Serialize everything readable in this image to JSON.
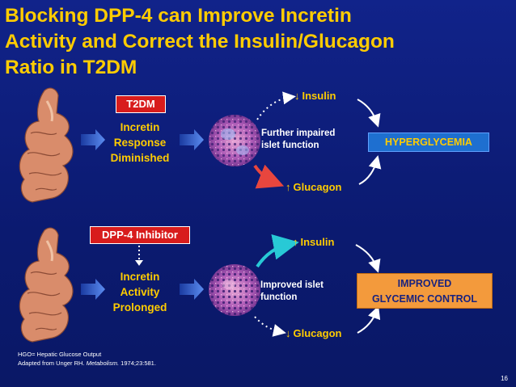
{
  "title": {
    "line1": "Blocking DPP-4 can Improve Incretin",
    "line2": "Activity and Correct the Insulin/Glucagon",
    "line3": "Ratio in T2DM"
  },
  "top": {
    "tag": "T2DM",
    "incretin_line1": "Incretin",
    "incretin_line2": "Response",
    "incretin_line3": "Diminished",
    "islet_line1": "Further impaired",
    "islet_line2": "islet function",
    "insulin_arrow": "↓",
    "insulin_label": "Insulin",
    "glucagon_arrow": "↑",
    "glucagon_label": "Glucagon",
    "outcome": "HYPERGLYCEMIA"
  },
  "bottom": {
    "tag": "DPP-4 Inhibitor",
    "incretin_line1": "Incretin",
    "incretin_line2": "Activity",
    "incretin_line3": "Prolonged",
    "islet_line1": "Improved islet",
    "islet_line2": "function",
    "insulin_arrow": "↑",
    "insulin_label": "Insulin",
    "glucagon_arrow": "↓",
    "glucagon_label": "Glucagon",
    "outcome_line1": "IMPROVED",
    "outcome_line2": "GLYCEMIC CONTROL"
  },
  "footer": {
    "line1": "HGO= Hepatic Glucose Output",
    "line2_prefix": "Adapted from Unger RH. ",
    "line2_journal": "Metabolism.",
    "line2_suffix": " 1974;23:581."
  },
  "page_number": "16",
  "colors": {
    "background": "#0c1d78",
    "title": "#ffcc00",
    "tag_red": "#d81c1c",
    "outcome_top_bg": "#1e6fd0",
    "outcome_bottom_bg": "#f39a3c",
    "glucagon_arrow_top": "#e8463e",
    "insulin_arrow_bottom": "#28c9d6"
  },
  "icons": [
    "intestine-icon",
    "islet-cells-icon",
    "right-arrow-icon",
    "curved-arrow-icon",
    "dotted-arrow-icon"
  ]
}
